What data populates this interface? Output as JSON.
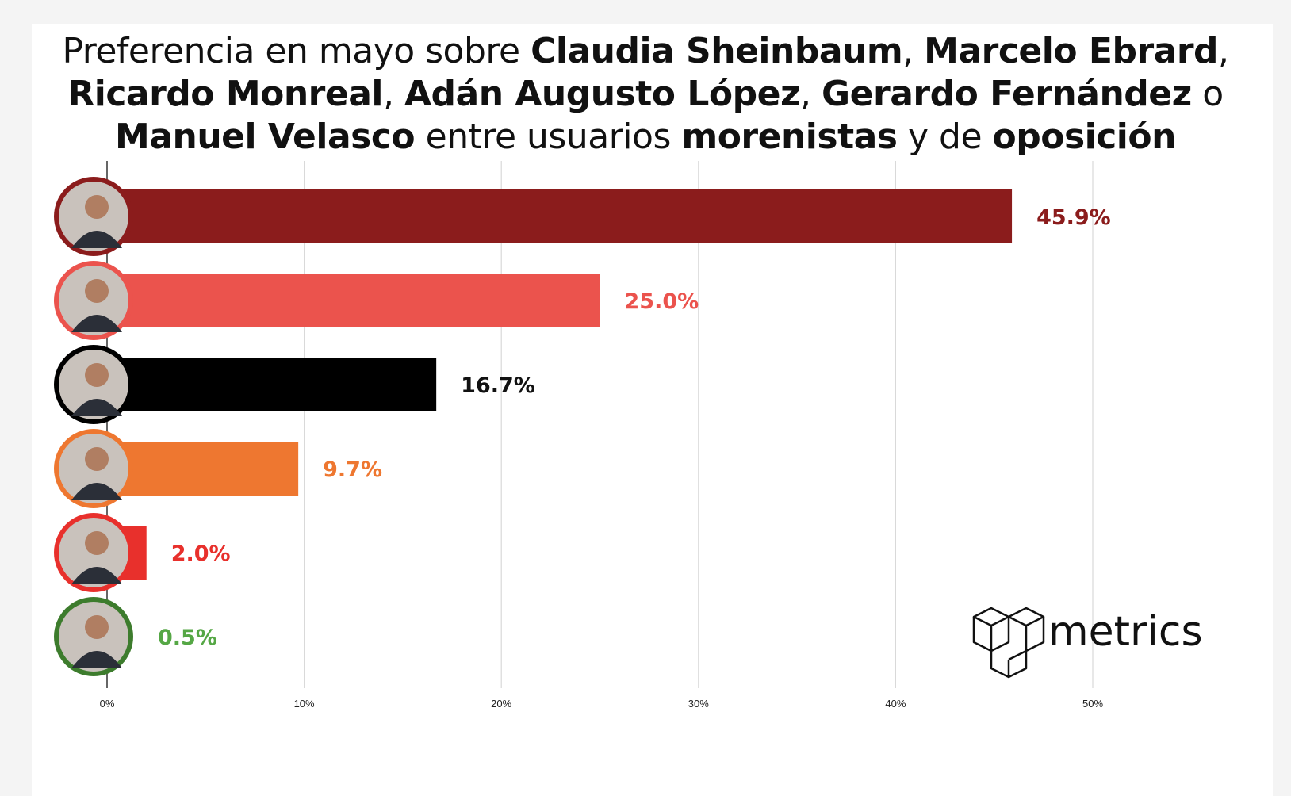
{
  "title": {
    "parts": [
      {
        "text": "Preferencia en mayo sobre ",
        "bold": false
      },
      {
        "text": "Claudia Sheinbaum",
        "bold": true
      },
      {
        "text": ", ",
        "bold": false
      },
      {
        "text": "Marcelo Ebrard",
        "bold": true
      },
      {
        "text": ",",
        "bold": false
      },
      {
        "text": "\n",
        "bold": false
      },
      {
        "text": "Ricardo Monreal",
        "bold": true
      },
      {
        "text": ", ",
        "bold": false
      },
      {
        "text": "Adán Augusto López",
        "bold": true
      },
      {
        "text": ", ",
        "bold": false
      },
      {
        "text": "Gerardo Fernández",
        "bold": true
      },
      {
        "text": " o",
        "bold": false
      },
      {
        "text": "\n",
        "bold": false
      },
      {
        "text": "Manuel Velasco",
        "bold": true
      },
      {
        "text": " entre usuarios ",
        "bold": false
      },
      {
        "text": "morenistas",
        "bold": true
      },
      {
        "text": " y de ",
        "bold": false
      },
      {
        "text": "oposición",
        "bold": true
      }
    ]
  },
  "chart_data": {
    "type": "bar",
    "orientation": "horizontal",
    "categories": [
      "",
      "",
      "",
      "",
      "",
      ""
    ],
    "values": [
      45.9,
      25.0,
      16.7,
      9.7,
      2.0,
      0.5
    ],
    "value_labels": [
      "45.9%",
      "25.0%",
      "16.7%",
      "9.7%",
      "2.0%",
      "0.5%"
    ],
    "bar_colors": [
      "#8b1c1c",
      "#eb534d",
      "#000000",
      "#ee7730",
      "#e8302c",
      "#3d7c2d"
    ],
    "label_colors": [
      "#8b1c1c",
      "#eb534d",
      "#111111",
      "#ee7730",
      "#e8302c",
      "#55a745"
    ],
    "avatar_icons": [
      "person-avatar-icon",
      "person-avatar-icon",
      "person-avatar-icon",
      "person-avatar-icon",
      "person-avatar-icon",
      "person-avatar-icon"
    ],
    "xlim": [
      0,
      50
    ],
    "x_ticks": [
      0,
      10,
      20,
      30,
      40,
      50
    ],
    "x_tick_labels": [
      "0%",
      "10%",
      "20%",
      "30%",
      "40%",
      "50%"
    ],
    "grid": true,
    "legend": "none"
  },
  "logo": {
    "text": "metrics",
    "icon": "cube-logo-icon"
  }
}
